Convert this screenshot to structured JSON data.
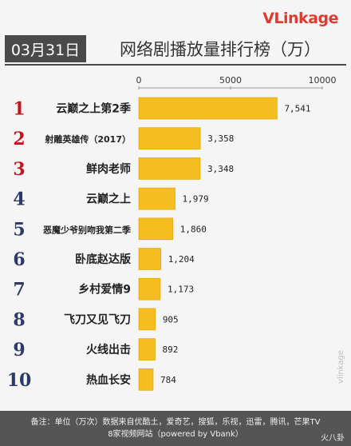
{
  "header": {
    "logo": "VLinkage",
    "date": "03月31日",
    "title": "网络剧播放量排行榜（万）"
  },
  "footer": {
    "line1": "备注：单位（万次）数据来自优酷土，爱奇艺，搜狐，乐视，迅雷，腾讯，芒果TV",
    "line2": "8家视频网站（powered by Vbank）",
    "watermark": "火八卦"
  },
  "side_watermark": "vlinkage",
  "colors": {
    "bar": "#f5bd1f",
    "bar_edge": "#d9a10b",
    "rank": "#c0161d",
    "rank_alt": "#2b3a67",
    "label": "#222222"
  },
  "chart_data": {
    "type": "bar",
    "orientation": "horizontal",
    "title": "网络剧播放量排行榜（万）",
    "xlim": [
      0,
      10000
    ],
    "xticks": [
      "0",
      "5000",
      "10000"
    ],
    "grid": false,
    "ranks": [
      "1",
      "2",
      "3",
      "4",
      "5",
      "6",
      "7",
      "8",
      "9",
      "10"
    ],
    "categories": [
      "云巅之上第2季",
      "射雕英雄传（2017）",
      "鲜肉老师",
      "云巅之上",
      "恶魔少爷别吻我第二季",
      "卧底赵达版",
      "乡村爱情9",
      "飞刀又见飞刀",
      "火线出击",
      "热血长安"
    ],
    "values": [
      7541,
      3358,
      3348,
      1979,
      1860,
      1204,
      1173,
      905,
      892,
      784
    ],
    "value_labels": [
      "7,541",
      "3,358",
      "3,348",
      "1,979",
      "1,860",
      "1,204",
      "1,173",
      "905",
      "892",
      "784"
    ]
  }
}
